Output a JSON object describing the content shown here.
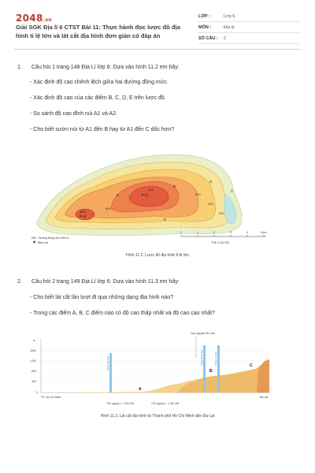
{
  "header": {
    "logo_main": "2048",
    "logo_suffix": ".vn",
    "title": "Giải SGK Địa lí 6 CTST Bài 11: Thực hành đọc lược đồ địa hình tỉ lệ lớn và lát cắt địa hình đơn giản có đáp án",
    "meta": [
      {
        "key": "LỚP :",
        "value": "Lớp 6"
      },
      {
        "key": "MÔN :",
        "value": "Địa lý"
      },
      {
        "key": "SỐ CÂU :",
        "value": "2"
      }
    ]
  },
  "questions": [
    {
      "number": "1.",
      "text": "Câu hỏi 1 trang 148 Địa Lí lớp 6: Dựa vào hình 11.2 em hãy:",
      "items": [
        "- Xác định độ cao chênh lệch giữa hai đường đồng mức.",
        "- Xác định độ cao của các điểm B, C, D, E trên lược đồ.",
        "- So sánh độ cao đỉnh núi A1 và A2.",
        "- Cho biết sườn núi từ A1 đến B hay từ A1 đến C dốc hơn?"
      ]
    },
    {
      "number": "2.",
      "text": "Câu hỏi 2 trang 149 Địa Lí lớp 6: Dựa vào hình 11.3 em hãy:",
      "items": [
        "- Cho biết lát cắt lần lượt đi qua những dạng địa hình nào?",
        "- Trong các điểm A, B, C điểm nào có độ cao thấp nhất và độ cao cao nhất?"
      ]
    }
  ],
  "figure1": {
    "caption": "Hình 11.2. Lược đồ địa hình tỉ lệ lớn",
    "legend_contour": "600 · Đường đồng mức 600 m",
    "legend_peak": "Đỉnh núi",
    "peak1_label": "A1",
    "peak1_height": "931",
    "peak2_label": "A2",
    "peak2_height": "853",
    "point_labels": [
      "B",
      "C",
      "D",
      "E"
    ],
    "contour_labels": [
      "400",
      "200",
      "800",
      "600"
    ],
    "side_label": "C",
    "scale_ticks": [
      "0",
      "1",
      "2",
      "3",
      "4",
      "5 km"
    ],
    "scale_ratio": "Tỉ lệ 1:100 000",
    "colors": {
      "c0": "#e9efc9",
      "c200": "#f6e59b",
      "c400": "#f8d074",
      "c600": "#f4a860",
      "c800": "#ef7f4f",
      "c900": "#e35a3d",
      "water": "#bfe6e6"
    }
  },
  "figure2": {
    "caption": "Hình 11.3. Lát cắt địa hình từ Thành phố Hồ Chí Minh đến Đà Lạt",
    "y_ticks": [
      "m",
      "1600",
      "1200",
      "800",
      "400",
      "0"
    ],
    "river_labels": [
      "Sông Sài Gòn",
      "Sông Đồng Nai",
      "Sông La Ngà"
    ],
    "plateau_label": "Cao nguyên Di Linh",
    "left_place": "TP. Hồ Chí Minh",
    "right_place": "Đà Lạt",
    "points": [
      "A",
      "B",
      "C"
    ],
    "scale_h": "Tỉ lệ ngang 1 : 1 000 000",
    "scale_v": "Tỉ lệ ngang 1 : 1 000 000",
    "colors": {
      "low": "#f3d38a",
      "mid": "#eebb6b",
      "high": "#e49a52",
      "water": "#8ec5e6"
    }
  }
}
